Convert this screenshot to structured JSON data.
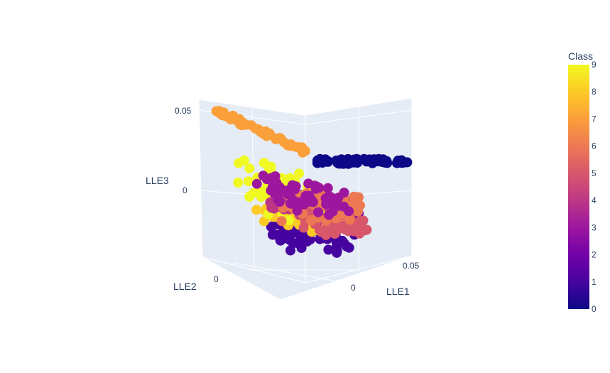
{
  "chart_data": {
    "type": "scatter",
    "subtype": "scatter3d",
    "axes": {
      "x": {
        "label": "LLE1",
        "ticks": [
          "0",
          "0.05"
        ]
      },
      "y": {
        "label": "LLE2",
        "ticks": [
          "0"
        ]
      },
      "z": {
        "label": "LLE3",
        "ticks": [
          "0",
          "0.05"
        ]
      }
    },
    "colorbar": {
      "title": "Class",
      "range": [
        0,
        9
      ],
      "ticks": [
        "0",
        "1",
        "2",
        "3",
        "4",
        "5",
        "6",
        "7",
        "8",
        "9"
      ],
      "colorscale": [
        "#0d0887",
        "#46039f",
        "#7201a8",
        "#9c179e",
        "#bd3786",
        "#d8576b",
        "#ed7953",
        "#fb9f3a",
        "#fdca26",
        "#f0f921"
      ]
    },
    "series": [
      {
        "class": 0,
        "values": [
          [
            0.07,
            0.0,
            0.038
          ],
          [
            0.005,
            0.0,
            0.032
          ]
        ]
      },
      {
        "class": 1,
        "values": [
          [
            -0.01,
            -0.006,
            -0.012
          ],
          [
            0.005,
            -0.004,
            -0.02
          ]
        ]
      },
      {
        "class": 2,
        "values": [
          [
            -0.005,
            -0.002,
            0.008
          ],
          [
            0.022,
            0.0,
            0.0
          ]
        ]
      },
      {
        "class": 3,
        "values": [
          [
            -0.01,
            0.002,
            0.018
          ],
          [
            0.015,
            0.0,
            0.004
          ]
        ]
      },
      {
        "class": 4,
        "values": [
          [
            -0.015,
            0.0,
            0.008
          ],
          [
            0.01,
            0.0,
            0.002
          ]
        ]
      },
      {
        "class": 5,
        "values": [
          [
            0.018,
            0.0,
            0.0
          ],
          [
            0.02,
            0.0,
            -0.008
          ]
        ]
      },
      {
        "class": 6,
        "values": [
          [
            0.01,
            0.0,
            0.0
          ],
          [
            0.015,
            0.0,
            0.01
          ]
        ]
      },
      {
        "class": 7,
        "values": [
          [
            -0.04,
            0.02,
            0.065
          ],
          [
            0.005,
            0.005,
            0.04
          ]
        ]
      },
      {
        "class": 8,
        "values": [
          [
            -0.015,
            0.0,
            -0.002
          ],
          [
            0.015,
            0.0,
            -0.005
          ]
        ]
      },
      {
        "class": 9,
        "values": [
          [
            -0.025,
            0.005,
            0.025
          ],
          [
            0.005,
            0.0,
            0.0
          ]
        ]
      }
    ]
  }
}
